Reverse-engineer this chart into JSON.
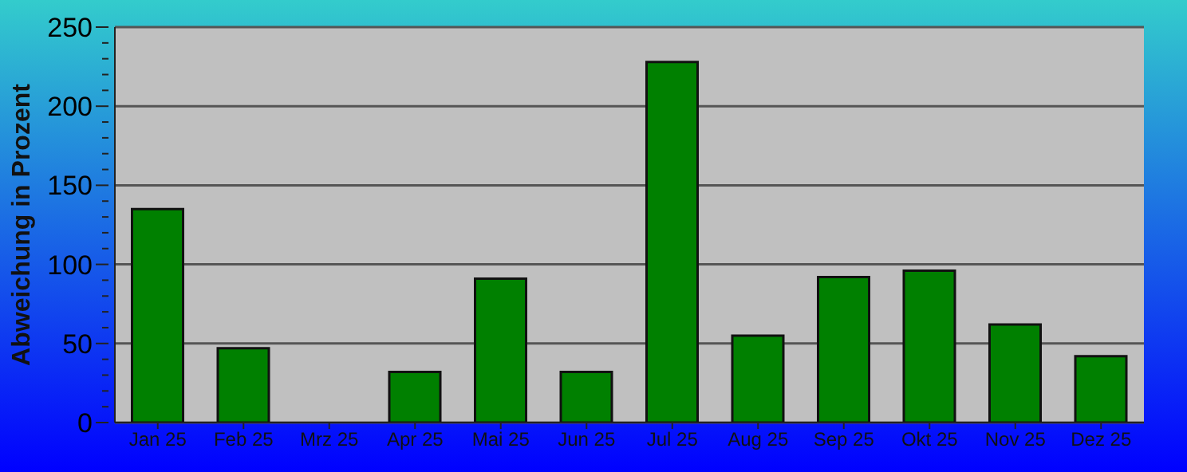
{
  "chart_data": {
    "type": "bar",
    "ylabel": "Abweichung in Prozent",
    "categories": [
      "Jan 25",
      "Feb 25",
      "Mrz 25",
      "Apr 25",
      "Mai 25",
      "Jun 25",
      "Jul 25",
      "Aug 25",
      "Sep 25",
      "Okt 25",
      "Nov 25",
      "Dez 25"
    ],
    "values": [
      135,
      47,
      0,
      32,
      91,
      32,
      228,
      55,
      92,
      96,
      62,
      42
    ],
    "color": "#008000",
    "ylim": [
      0,
      250
    ],
    "yticks": [
      0,
      {
        "value": 10,
        "label": null
      },
      {
        "value": 20,
        "label": null
      },
      {
        "value": 30,
        "label": null
      },
      {
        "value": 40,
        "label": null
      },
      50,
      {
        "value": 60,
        "label": null
      },
      {
        "value": 70,
        "label": null
      },
      {
        "value": 80,
        "label": null
      },
      {
        "value": 90,
        "label": null
      },
      100,
      {
        "value": 110,
        "label": null
      },
      {
        "value": 120,
        "label": null
      },
      {
        "value": 130,
        "label": null
      },
      {
        "value": 140,
        "label": null
      },
      150,
      {
        "value": 160,
        "label": null
      },
      {
        "value": 170,
        "label": null
      },
      {
        "value": 180,
        "label": null
      },
      {
        "value": 190,
        "label": null
      },
      200,
      {
        "value": 210,
        "label": null
      },
      {
        "value": 220,
        "label": null
      },
      {
        "value": 230,
        "label": null
      },
      {
        "value": 240,
        "label": null
      },
      250
    ],
    "grid": "y",
    "legend": false
  }
}
